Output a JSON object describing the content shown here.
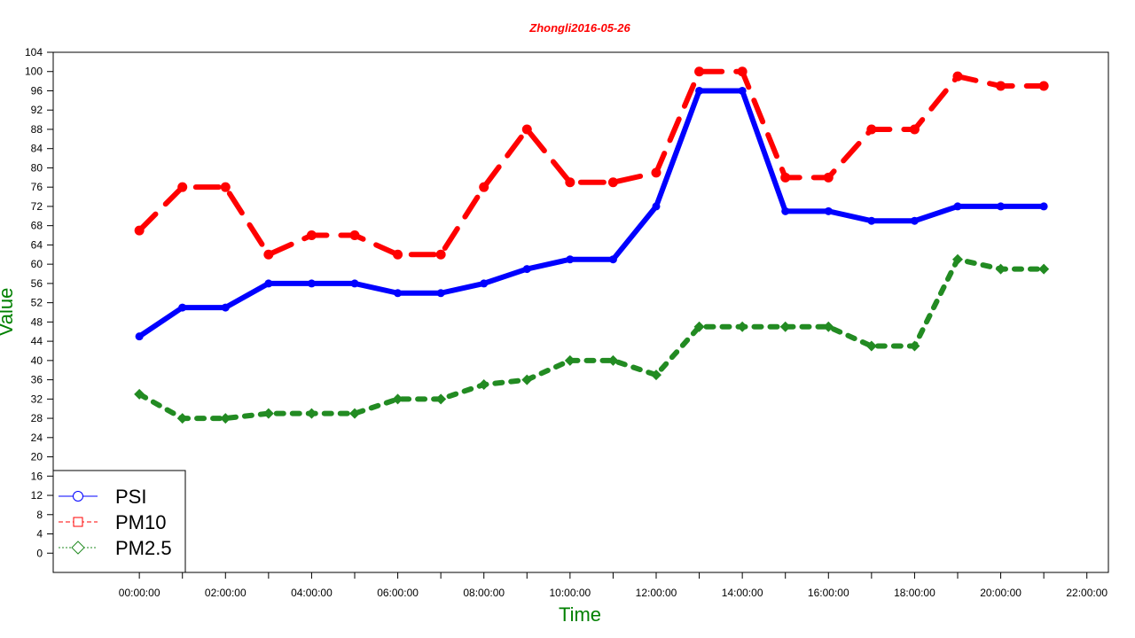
{
  "chart_data": {
    "type": "line",
    "title": "Zhongli2016-05-26",
    "xlabel": "Time",
    "ylabel": "Value",
    "x_ticks": [
      "00:00:00",
      "02:00:00",
      "04:00:00",
      "06:00:00",
      "08:00:00",
      "10:00:00",
      "12:00:00",
      "14:00:00",
      "16:00:00",
      "18:00:00",
      "20:00:00",
      "22:00:00"
    ],
    "x_hours": [
      0,
      1,
      2,
      3,
      4,
      5,
      6,
      7,
      8,
      9,
      10,
      11,
      12,
      13,
      14,
      15,
      16,
      17,
      18,
      19,
      20,
      21
    ],
    "xlim": [
      -2,
      22.5
    ],
    "ylim": [
      -4,
      104
    ],
    "y_ticks": [
      0,
      4,
      8,
      12,
      16,
      20,
      24,
      28,
      32,
      36,
      40,
      44,
      48,
      52,
      56,
      60,
      64,
      68,
      72,
      76,
      80,
      84,
      88,
      92,
      96,
      100,
      104
    ],
    "legend_position": "bottom-left",
    "series": [
      {
        "name": "PSI",
        "color": "#0000ff",
        "dash": "solid",
        "values": [
          45,
          51,
          51,
          56,
          56,
          56,
          54,
          54,
          56,
          59,
          61,
          61,
          72,
          96,
          96,
          71,
          71,
          69,
          69,
          72,
          72,
          72
        ]
      },
      {
        "name": "PM10",
        "color": "#ff0000",
        "dash": "dashed",
        "values": [
          67,
          76,
          76,
          62,
          66,
          66,
          62,
          62,
          76,
          88,
          77,
          77,
          79,
          100,
          100,
          78,
          78,
          88,
          88,
          99,
          97,
          97
        ]
      },
      {
        "name": "PM2.5",
        "color": "#228b22",
        "dash": "dotted",
        "values": [
          33,
          28,
          28,
          29,
          29,
          29,
          32,
          32,
          35,
          36,
          40,
          40,
          37,
          47,
          47,
          47,
          47,
          43,
          43,
          61,
          59,
          59
        ]
      }
    ]
  },
  "colors": {
    "title": "#ff0000",
    "axis_label": "#008000"
  }
}
